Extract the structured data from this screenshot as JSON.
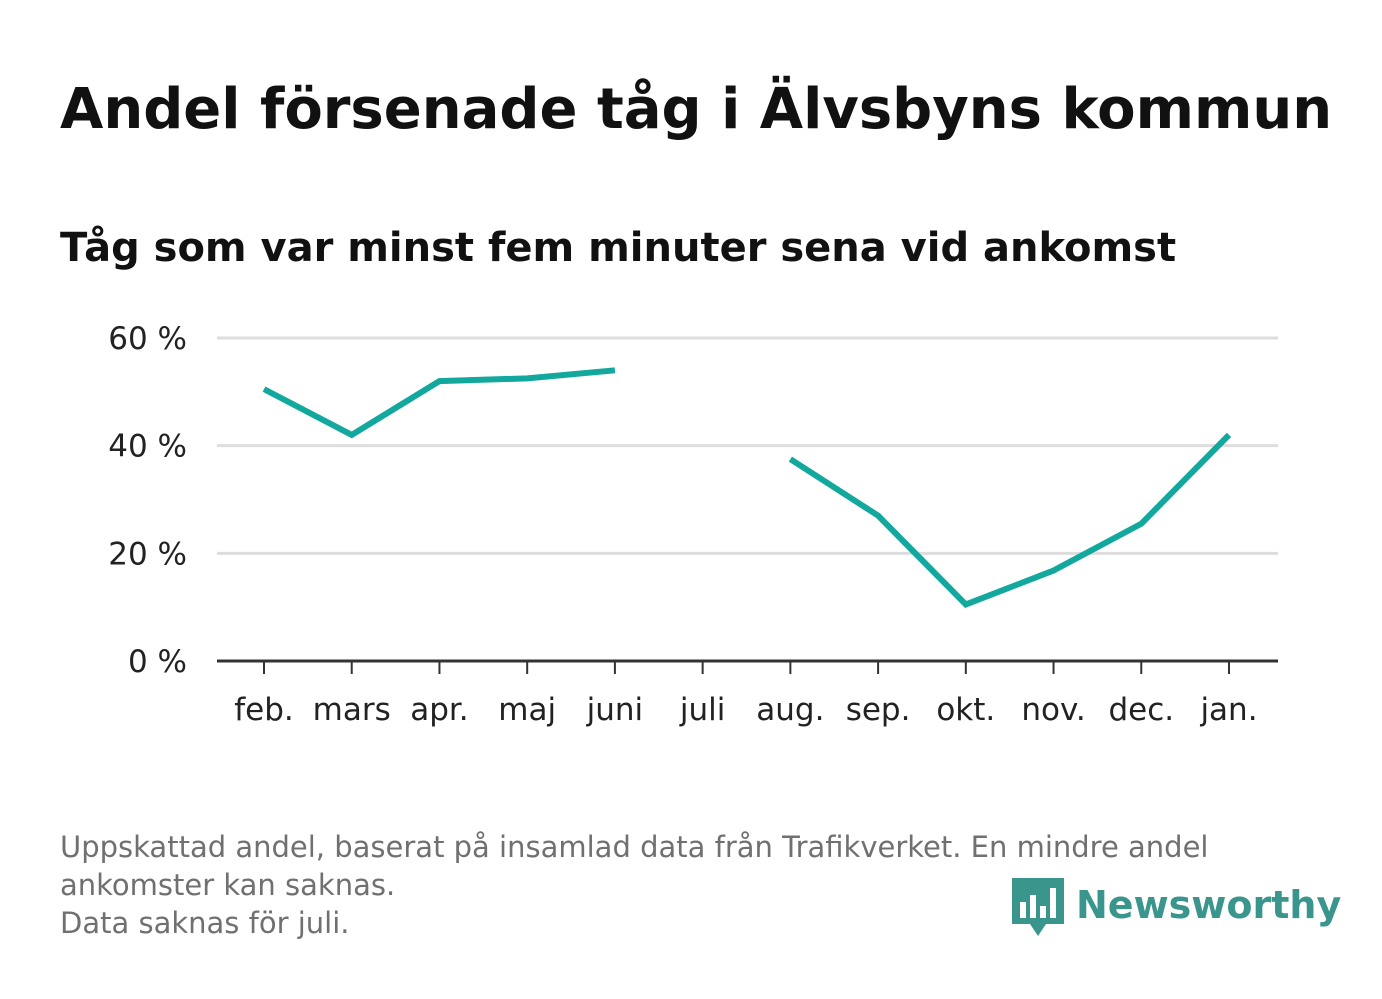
{
  "header": {
    "title": "Andel försenade tåg i Älvsbyns kommun",
    "subtitle": "Tåg som var minst fem minuter sena vid ankomst"
  },
  "colors": {
    "line": "#13a89e",
    "grid": "#dddddd",
    "axis": "#333333",
    "logo": "#3a968d",
    "footnote": "#707070"
  },
  "chart_data": {
    "type": "line",
    "title": "Andel försenade tåg i Älvsbyns kommun",
    "subtitle": "Tåg som var minst fem minuter sena vid ankomst",
    "categories": [
      "feb.",
      "mars",
      "apr.",
      "maj",
      "juni",
      "juli",
      "aug.",
      "sep.",
      "okt.",
      "nov.",
      "dec.",
      "jan."
    ],
    "series": [
      {
        "values": [
          50.5,
          42.0,
          52.0,
          52.5,
          54.0,
          null,
          37.5,
          27.0,
          10.5,
          16.8,
          25.5,
          42.0
        ]
      }
    ],
    "y_ticks": [
      {
        "value": 0,
        "label": "0 %"
      },
      {
        "value": 20,
        "label": "20 %"
      },
      {
        "value": 40,
        "label": "40 %"
      },
      {
        "value": 60,
        "label": "60 %"
      }
    ],
    "ylim": [
      0,
      60
    ],
    "xlabel": "",
    "ylabel": "",
    "grid": true,
    "legend": "none"
  },
  "footnote": {
    "line1": "Uppskattad andel, baserat på insamlad data från Trafikverket. En mindre andel ankomster kan saknas.",
    "line2": "Data saknas för juli."
  },
  "logo": {
    "text": "Newsworthy",
    "icon": "bar-chart-speech-bubble-icon"
  }
}
